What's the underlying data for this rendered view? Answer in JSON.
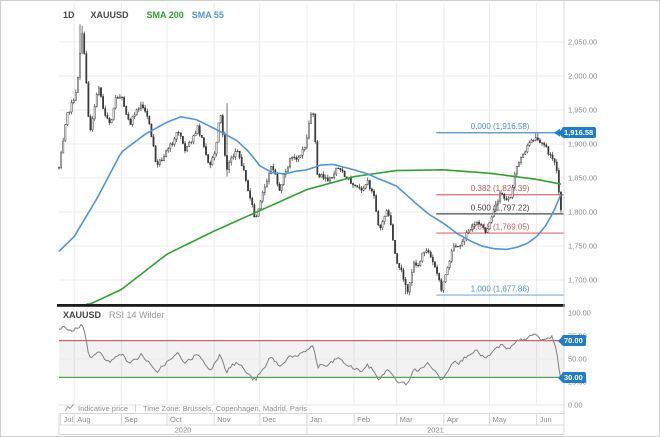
{
  "colors": {
    "sma200": "#2fa12f",
    "sma55": "#4f97d8",
    "fib_blue": "#4a90cc",
    "fib_blue_light": "#79b2dd",
    "fib_red": "#e06c6c",
    "fib_mid": "#4d4d4d",
    "fib_label_blue": "#4a90cc",
    "fib_label_red": "#d05858",
    "fib_label_dark": "#3f3f3f",
    "badge_blue": "#1f7ecb",
    "rsi_line": "#808080",
    "rsi_upper": "#c96a66",
    "rsi_lower": "#52a952",
    "candle_up": "#ffffff",
    "candle_down": "#3a3a3a",
    "candle_stroke": "#3a3a3a",
    "grid": "#ebebeb",
    "axis_text": "#8c8c8c",
    "separator": "#1c1c1c",
    "axis_line": "#d9d9d9"
  },
  "legend": {
    "timeframe": "1D",
    "symbol": "XAUUSD",
    "sma200_label": "SMA 200",
    "sma55_label": "SMA 55"
  },
  "rsi_header": {
    "symbol": "XAUUSD",
    "indicator": "RSI 14 Wilder"
  },
  "footer": {
    "indicative_price": "Indicative price",
    "time_zone": "Time Zone: Brussels, Copenhagen, Madrid, Paris"
  },
  "price_axis": {
    "ticks": [
      2050,
      2000,
      1950,
      1900,
      1850,
      1800,
      1750,
      1700
    ],
    "badge_label": "1,916.58"
  },
  "rsi_axis": {
    "ticks": [
      100,
      75,
      50,
      25,
      0
    ],
    "badge_upper": "70.00",
    "badge_lower": "30.00"
  },
  "time_axis": {
    "months": [
      {
        "label": "Jul",
        "day": 1
      },
      {
        "label": "Aug",
        "day": 10
      },
      {
        "label": "Sep",
        "day": 41
      },
      {
        "label": "Oct",
        "day": 71
      },
      {
        "label": "Nov",
        "day": 102
      },
      {
        "label": "Dec",
        "day": 132
      },
      {
        "label": "Jan",
        "day": 163
      },
      {
        "label": "Feb",
        "day": 194
      },
      {
        "label": "Mar",
        "day": 222
      },
      {
        "label": "Apr",
        "day": 253
      },
      {
        "label": "May",
        "day": 283
      },
      {
        "label": "Jun",
        "day": 314
      }
    ],
    "years": [
      {
        "label": "2020",
        "from_day": 0,
        "to_day": 163
      },
      {
        "label": "2021",
        "from_day": 163,
        "to_day": 332
      }
    ]
  },
  "chart_data": {
    "type": "candlestick",
    "symbol": "XAUUSD",
    "interval": "1D",
    "x_range": {
      "start": "Jul 2020",
      "end": "Jun 2021",
      "days": 332
    },
    "price_panel": {
      "ylim": [
        1663,
        2095
      ],
      "candle_close_anchors": [
        [
          0,
          1865
        ],
        [
          3,
          1905
        ],
        [
          5,
          1940
        ],
        [
          9,
          1962
        ],
        [
          12,
          1985
        ],
        [
          15,
          2063
        ],
        [
          17,
          2028
        ],
        [
          20,
          1912
        ],
        [
          23,
          1950
        ],
        [
          26,
          1988
        ],
        [
          29,
          1955
        ],
        [
          31,
          1940
        ],
        [
          34,
          1928
        ],
        [
          37,
          1966
        ],
        [
          41,
          1972
        ],
        [
          44,
          1942
        ],
        [
          47,
          1932
        ],
        [
          51,
          1947
        ],
        [
          54,
          1958
        ],
        [
          58,
          1942
        ],
        [
          62,
          1898
        ],
        [
          64,
          1866
        ],
        [
          67,
          1876
        ],
        [
          70,
          1886
        ],
        [
          74,
          1900
        ],
        [
          78,
          1920
        ],
        [
          81,
          1905
        ],
        [
          83,
          1892
        ],
        [
          87,
          1905
        ],
        [
          91,
          1924
        ],
        [
          95,
          1902
        ],
        [
          99,
          1867
        ],
        [
          103,
          1892
        ],
        [
          106,
          1950
        ],
        [
          110,
          1863
        ],
        [
          113,
          1878
        ],
        [
          117,
          1889
        ],
        [
          120,
          1872
        ],
        [
          124,
          1837
        ],
        [
          127,
          1808
        ],
        [
          129,
          1786
        ],
        [
          132,
          1814
        ],
        [
          136,
          1838
        ],
        [
          139,
          1868
        ],
        [
          142,
          1855
        ],
        [
          145,
          1832
        ],
        [
          148,
          1854
        ],
        [
          152,
          1878
        ],
        [
          156,
          1876
        ],
        [
          159,
          1884
        ],
        [
          162,
          1896
        ],
        [
          165,
          1943
        ],
        [
          167,
          1950
        ],
        [
          170,
          1849
        ],
        [
          173,
          1855
        ],
        [
          176,
          1846
        ],
        [
          180,
          1855
        ],
        [
          183,
          1866
        ],
        [
          187,
          1856
        ],
        [
          191,
          1848
        ],
        [
          195,
          1836
        ],
        [
          199,
          1830
        ],
        [
          203,
          1843
        ],
        [
          207,
          1823
        ],
        [
          210,
          1776
        ],
        [
          213,
          1784
        ],
        [
          216,
          1806
        ],
        [
          219,
          1770
        ],
        [
          222,
          1724
        ],
        [
          225,
          1712
        ],
        [
          229,
          1684
        ],
        [
          231,
          1700
        ],
        [
          233,
          1727
        ],
        [
          236,
          1720
        ],
        [
          239,
          1737
        ],
        [
          243,
          1744
        ],
        [
          246,
          1727
        ],
        [
          249,
          1710
        ],
        [
          251,
          1686
        ],
        [
          254,
          1708
        ],
        [
          257,
          1730
        ],
        [
          260,
          1755
        ],
        [
          263,
          1746
        ],
        [
          267,
          1764
        ],
        [
          270,
          1776
        ],
        [
          274,
          1784
        ],
        [
          277,
          1780
        ],
        [
          281,
          1772
        ],
        [
          284,
          1791
        ],
        [
          288,
          1815
        ],
        [
          291,
          1831
        ],
        [
          294,
          1816
        ],
        [
          297,
          1825
        ],
        [
          301,
          1869
        ],
        [
          304,
          1881
        ],
        [
          308,
          1898
        ],
        [
          311,
          1904
        ],
        [
          314,
          1907
        ],
        [
          317,
          1900
        ],
        [
          321,
          1892
        ],
        [
          324,
          1877
        ],
        [
          327,
          1866
        ],
        [
          328,
          1856
        ],
        [
          329,
          1812
        ],
        [
          330,
          1805
        ]
      ],
      "spike_high": {
        "day": 15,
        "high": 2075
      },
      "sma200_anchors": [
        [
          18,
          1662
        ],
        [
          41,
          1686
        ],
        [
          71,
          1738
        ],
        [
          102,
          1772
        ],
        [
          132,
          1802
        ],
        [
          163,
          1833
        ],
        [
          194,
          1852
        ],
        [
          222,
          1861
        ],
        [
          253,
          1862
        ],
        [
          283,
          1857
        ],
        [
          314,
          1848
        ],
        [
          330,
          1841
        ]
      ],
      "sma55_anchors": [
        [
          0,
          1742
        ],
        [
          10,
          1764
        ],
        [
          25,
          1820
        ],
        [
          41,
          1888
        ],
        [
          57,
          1915
        ],
        [
          71,
          1932
        ],
        [
          80,
          1940
        ],
        [
          90,
          1936
        ],
        [
          102,
          1923
        ],
        [
          117,
          1905
        ],
        [
          125,
          1888
        ],
        [
          132,
          1868
        ],
        [
          140,
          1858
        ],
        [
          148,
          1856
        ],
        [
          156,
          1860
        ],
        [
          163,
          1862
        ],
        [
          172,
          1869
        ],
        [
          180,
          1870
        ],
        [
          194,
          1862
        ],
        [
          203,
          1856
        ],
        [
          210,
          1849
        ],
        [
          222,
          1838
        ],
        [
          229,
          1824
        ],
        [
          235,
          1812
        ],
        [
          243,
          1797
        ],
        [
          253,
          1783
        ],
        [
          262,
          1768
        ],
        [
          270,
          1758
        ],
        [
          278,
          1750
        ],
        [
          286,
          1746
        ],
        [
          294,
          1745
        ],
        [
          301,
          1748
        ],
        [
          308,
          1754
        ],
        [
          314,
          1764
        ],
        [
          320,
          1780
        ],
        [
          325,
          1800
        ],
        [
          330,
          1826
        ]
      ],
      "fib_start_day": 248,
      "fib_levels": [
        {
          "label": "0.000 (1,916.58)",
          "value": 1916.58,
          "color": "blue"
        },
        {
          "label": "0.382 (1,825.39)",
          "value": 1825.39,
          "color": "red"
        },
        {
          "label": "0.500 (1,797.22)",
          "value": 1797.22,
          "color": "dark"
        },
        {
          "label": "0.618 (1,769.05)",
          "value": 1769.05,
          "color": "red"
        },
        {
          "label": "1.000 (1,677.86)",
          "value": 1677.86,
          "color": "blue_light"
        }
      ]
    },
    "rsi_panel": {
      "ylim": [
        0,
        100
      ],
      "upper": 70,
      "lower": 30,
      "anchors": [
        [
          0,
          82
        ],
        [
          4,
          85
        ],
        [
          8,
          80
        ],
        [
          12,
          84
        ],
        [
          15,
          87
        ],
        [
          17,
          80
        ],
        [
          20,
          50
        ],
        [
          23,
          55
        ],
        [
          26,
          60
        ],
        [
          29,
          52
        ],
        [
          31,
          48
        ],
        [
          34,
          46
        ],
        [
          37,
          54
        ],
        [
          41,
          56
        ],
        [
          44,
          49
        ],
        [
          47,
          46
        ],
        [
          51,
          50
        ],
        [
          54,
          55
        ],
        [
          58,
          48
        ],
        [
          62,
          39
        ],
        [
          64,
          35
        ],
        [
          67,
          41
        ],
        [
          70,
          45
        ],
        [
          74,
          50
        ],
        [
          78,
          56
        ],
        [
          81,
          50
        ],
        [
          83,
          46
        ],
        [
          87,
          50
        ],
        [
          91,
          56
        ],
        [
          95,
          47
        ],
        [
          99,
          38
        ],
        [
          103,
          46
        ],
        [
          106,
          57
        ],
        [
          110,
          36
        ],
        [
          113,
          42
        ],
        [
          117,
          46
        ],
        [
          120,
          42
        ],
        [
          124,
          34
        ],
        [
          127,
          29
        ],
        [
          129,
          27
        ],
        [
          132,
          34
        ],
        [
          136,
          42
        ],
        [
          139,
          53
        ],
        [
          142,
          48
        ],
        [
          145,
          41
        ],
        [
          148,
          47
        ],
        [
          152,
          54
        ],
        [
          156,
          52
        ],
        [
          159,
          55
        ],
        [
          162,
          58
        ],
        [
          165,
          63
        ],
        [
          167,
          65
        ],
        [
          170,
          41
        ],
        [
          173,
          44
        ],
        [
          176,
          42
        ],
        [
          180,
          47
        ],
        [
          183,
          52
        ],
        [
          187,
          46
        ],
        [
          191,
          42
        ],
        [
          195,
          39
        ],
        [
          199,
          37
        ],
        [
          203,
          43
        ],
        [
          207,
          37
        ],
        [
          210,
          28
        ],
        [
          213,
          32
        ],
        [
          216,
          40
        ],
        [
          219,
          32
        ],
        [
          222,
          26
        ],
        [
          225,
          24
        ],
        [
          229,
          23
        ],
        [
          231,
          30
        ],
        [
          233,
          39
        ],
        [
          236,
          36
        ],
        [
          239,
          42
        ],
        [
          243,
          45
        ],
        [
          246,
          39
        ],
        [
          249,
          33
        ],
        [
          251,
          27
        ],
        [
          254,
          34
        ],
        [
          257,
          41
        ],
        [
          260,
          50
        ],
        [
          263,
          45
        ],
        [
          267,
          52
        ],
        [
          270,
          56
        ],
        [
          274,
          59
        ],
        [
          277,
          55
        ],
        [
          281,
          50
        ],
        [
          284,
          56
        ],
        [
          288,
          62
        ],
        [
          291,
          66
        ],
        [
          294,
          60
        ],
        [
          297,
          62
        ],
        [
          301,
          69
        ],
        [
          304,
          71
        ],
        [
          308,
          73
        ],
        [
          311,
          75
        ],
        [
          314,
          77
        ],
        [
          317,
          70
        ],
        [
          321,
          72
        ],
        [
          324,
          74
        ],
        [
          326,
          66
        ],
        [
          327,
          58
        ],
        [
          328,
          50
        ],
        [
          329,
          35
        ],
        [
          330,
          27
        ]
      ]
    }
  }
}
